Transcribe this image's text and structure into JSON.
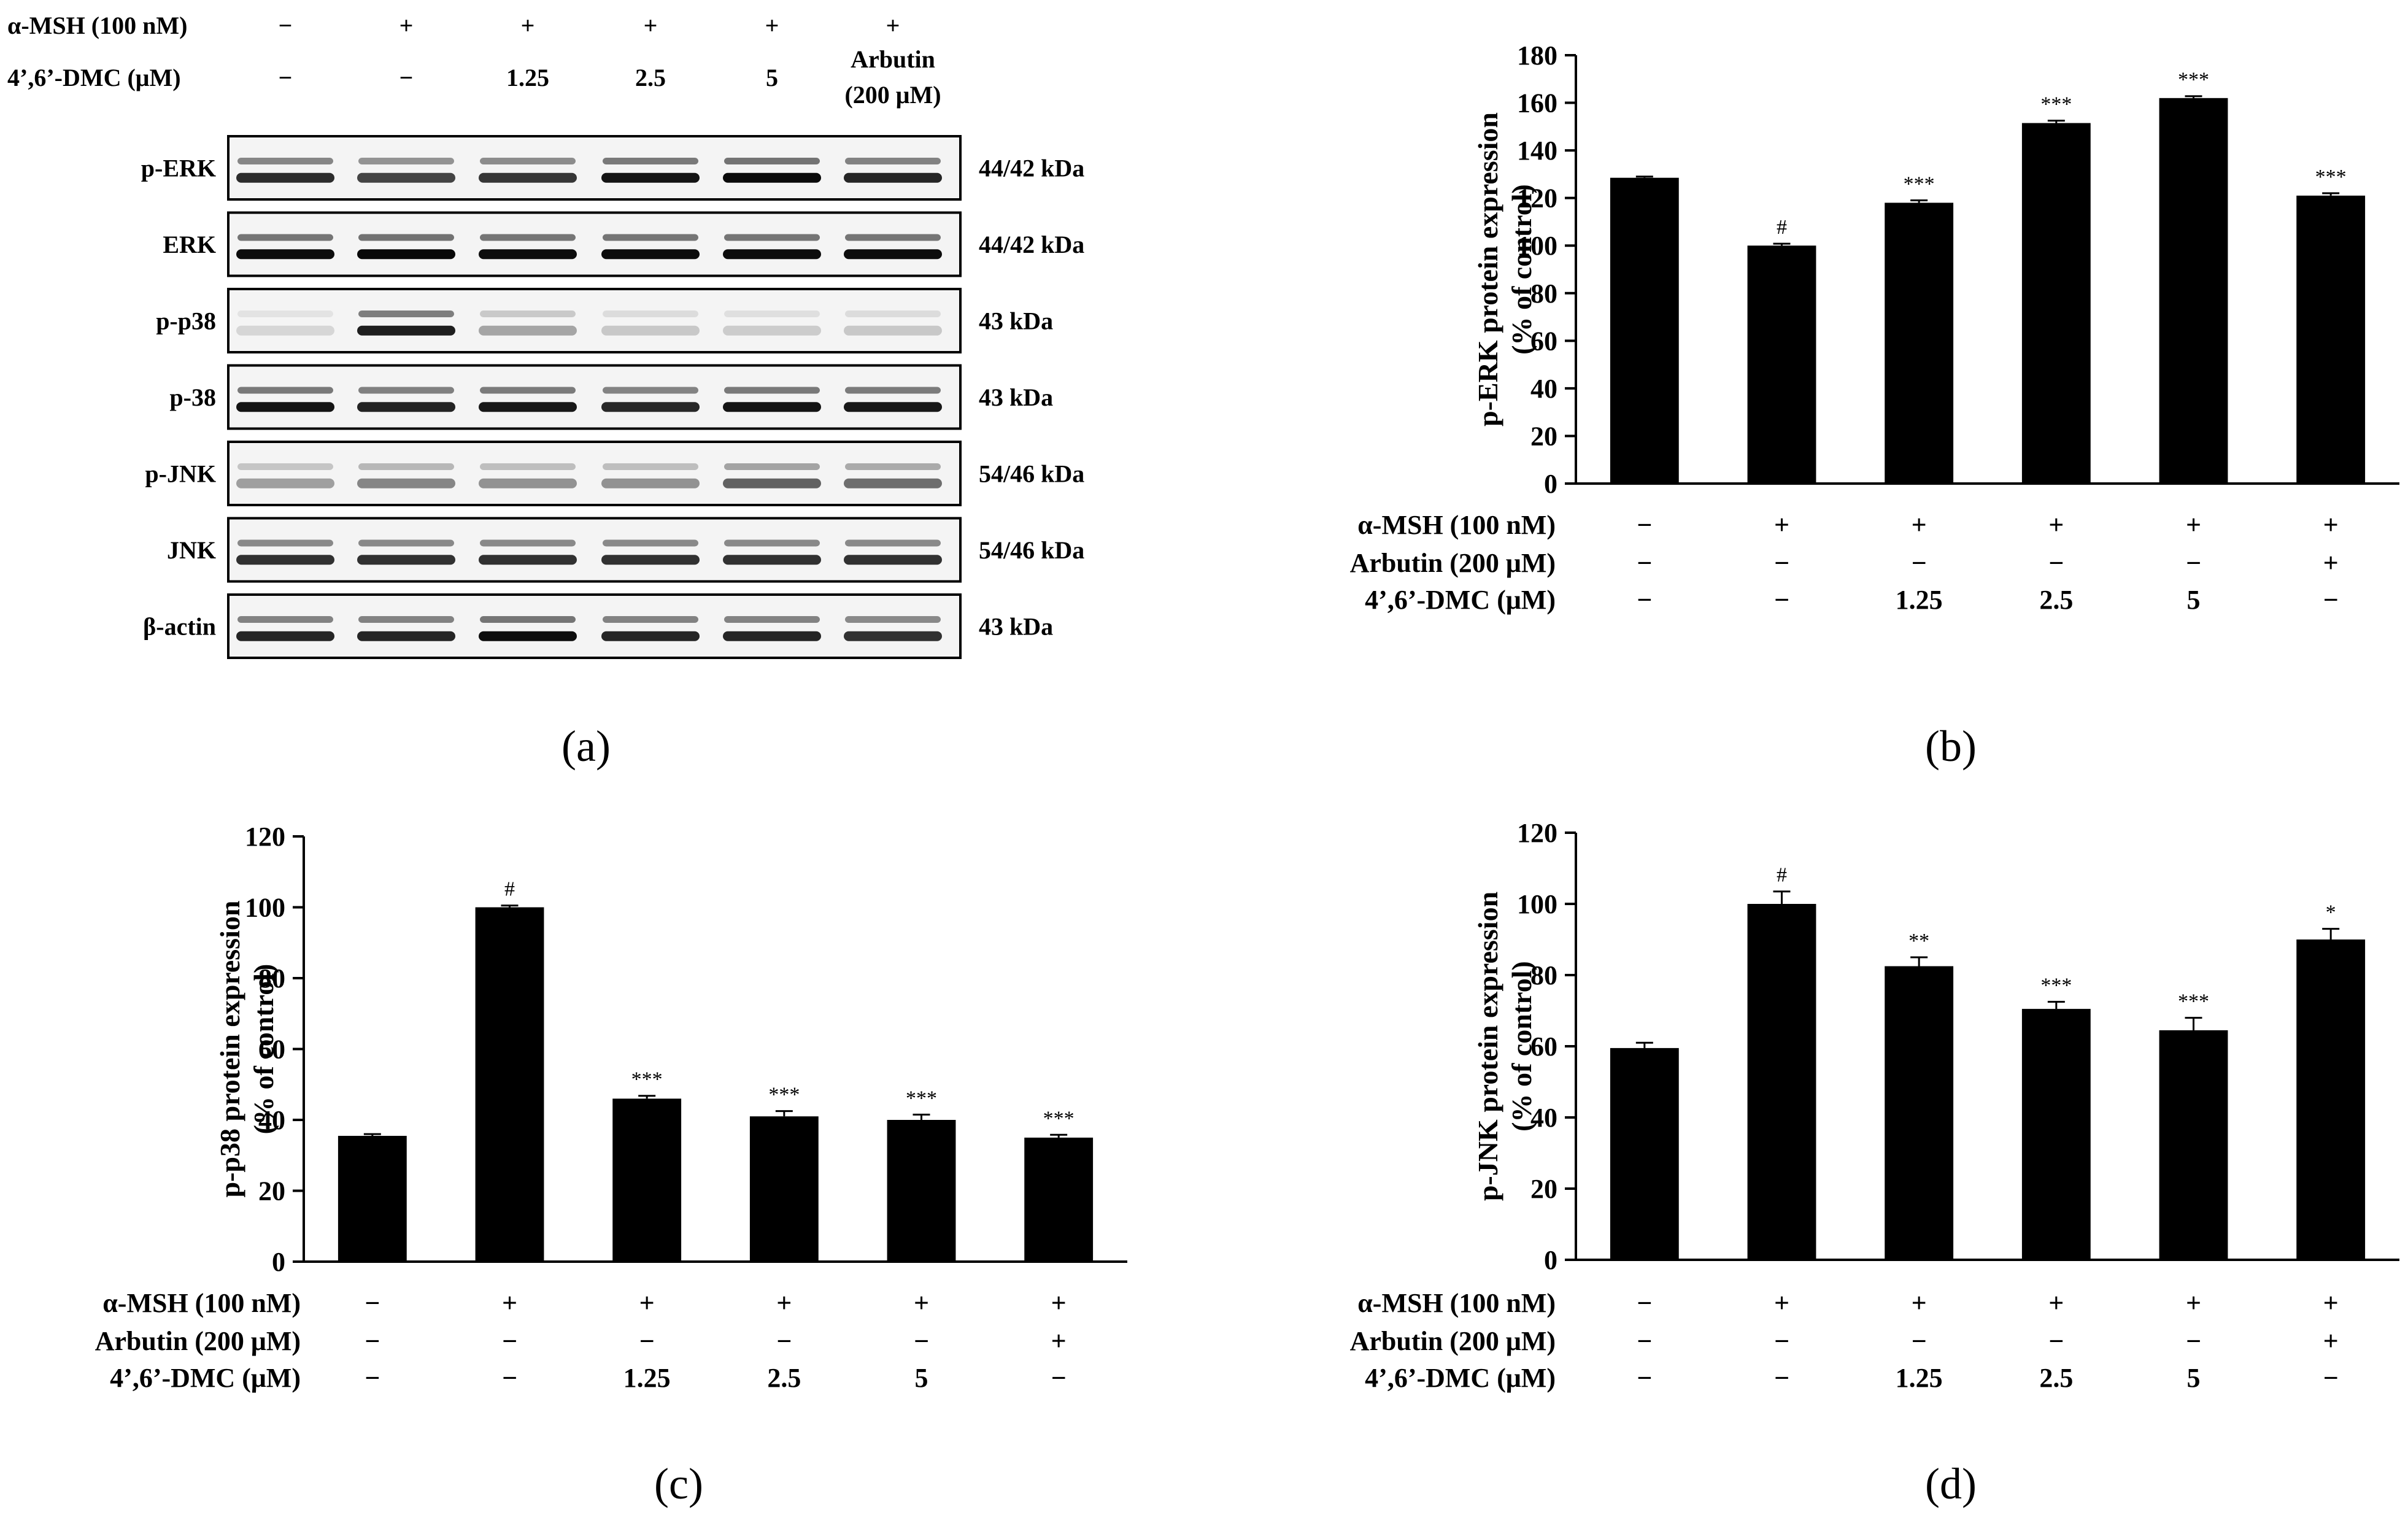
{
  "colors": {
    "bar": "#000000",
    "blot_bg": "#f4f4f4",
    "sig": "#808080"
  },
  "panel_a": {
    "label": "(a)",
    "header": {
      "row1_label": "α-MSH (100 nM)",
      "row1": [
        "−",
        "+",
        "+",
        "+",
        "+",
        "+"
      ],
      "row2_label": "4’,6’-DMC (μM)",
      "row2": [
        "−",
        "−",
        "1.25",
        "2.5",
        "5",
        "Arbutin"
      ],
      "row2_sub": "(200 μM)"
    },
    "blots": [
      {
        "name": "p-ERK",
        "size": "44/42 kDa",
        "lanes": [
          0.82,
          0.72,
          0.78,
          0.92,
          0.96,
          0.85
        ]
      },
      {
        "name": "ERK",
        "size": "44/42 kDa",
        "lanes": [
          0.95,
          0.97,
          0.95,
          0.95,
          0.95,
          0.95
        ]
      },
      {
        "name": "p-p38",
        "size": "43 kDa",
        "lanes": [
          0.12,
          0.88,
          0.32,
          0.18,
          0.16,
          0.18
        ]
      },
      {
        "name": "p-38",
        "size": "43 kDa",
        "lanes": [
          0.92,
          0.86,
          0.9,
          0.84,
          0.92,
          0.9
        ]
      },
      {
        "name": "p-JNK",
        "size": "54/46 kDa",
        "lanes": [
          0.35,
          0.45,
          0.4,
          0.4,
          0.6,
          0.55
        ]
      },
      {
        "name": "JNK",
        "size": "54/46 kDa",
        "lanes": [
          0.8,
          0.8,
          0.8,
          0.8,
          0.8,
          0.8
        ]
      },
      {
        "name": "β-actin",
        "size": "43 kDa",
        "lanes": [
          0.85,
          0.85,
          0.95,
          0.85,
          0.85,
          0.8
        ]
      }
    ]
  },
  "chart_data": [
    {
      "panel": "(b)",
      "type": "bar",
      "title": "",
      "ylabel_line1": "p-ERK protein expression",
      "ylabel_line2": "(% of control)",
      "ylim": [
        0,
        180
      ],
      "yticks": [
        0,
        20,
        40,
        60,
        80,
        100,
        120,
        140,
        160,
        180
      ],
      "values": [
        128.5,
        100,
        118,
        151.5,
        162,
        121
      ],
      "errors": [
        0.5,
        0.8,
        1,
        1,
        0.8,
        1
      ],
      "sig": [
        "",
        "#",
        "***",
        "***",
        "***",
        "***"
      ],
      "rows": [
        {
          "label": "α-MSH (100 nM)",
          "cells": [
            "−",
            "+",
            "+",
            "+",
            "+",
            "+"
          ]
        },
        {
          "label": "Arbutin (200 μM)",
          "cells": [
            "−",
            "−",
            "−",
            "−",
            "−",
            "+"
          ]
        },
        {
          "label": "4’,6’-DMC (μM)",
          "cells": [
            "−",
            "−",
            "1.25",
            "2.5",
            "5",
            "−"
          ]
        }
      ]
    },
    {
      "panel": "(c)",
      "type": "bar",
      "title": "",
      "ylabel_line1": "p-p38 protein expression",
      "ylabel_line2": "(% of control)",
      "ylim": [
        0,
        120
      ],
      "yticks": [
        0,
        20,
        40,
        60,
        80,
        100,
        120
      ],
      "values": [
        35.5,
        100,
        46,
        41,
        40,
        35
      ],
      "errors": [
        0.5,
        0.5,
        0.8,
        1.5,
        1.5,
        0.8
      ],
      "sig": [
        "",
        "#",
        "***",
        "***",
        "***",
        "***"
      ],
      "rows": [
        {
          "label": "α-MSH (100 nM)",
          "cells": [
            "−",
            "+",
            "+",
            "+",
            "+",
            "+"
          ]
        },
        {
          "label": "Arbutin (200 μM)",
          "cells": [
            "−",
            "−",
            "−",
            "−",
            "−",
            "+"
          ]
        },
        {
          "label": "4’,6’-DMC (μM)",
          "cells": [
            "−",
            "−",
            "1.25",
            "2.5",
            "5",
            "−"
          ]
        }
      ]
    },
    {
      "panel": "(d)",
      "type": "bar",
      "title": "",
      "ylabel_line1": "p-JNK protein expression",
      "ylabel_line2": "(% of control)",
      "ylim": [
        0,
        120
      ],
      "yticks": [
        0,
        20,
        40,
        60,
        80,
        100,
        120
      ],
      "values": [
        59.5,
        100,
        82.5,
        70.5,
        64.5,
        90
      ],
      "errors": [
        1.5,
        3.5,
        2.5,
        2,
        3.5,
        3
      ],
      "sig": [
        "",
        "#",
        "**",
        "***",
        "***",
        "*"
      ],
      "rows": [
        {
          "label": "α-MSH (100 nM)",
          "cells": [
            "−",
            "+",
            "+",
            "+",
            "+",
            "+"
          ]
        },
        {
          "label": "Arbutin (200 μM)",
          "cells": [
            "−",
            "−",
            "−",
            "−",
            "−",
            "+"
          ]
        },
        {
          "label": "4’,6’-DMC (μM)",
          "cells": [
            "−",
            "−",
            "1.25",
            "2.5",
            "5",
            "−"
          ]
        }
      ]
    }
  ]
}
